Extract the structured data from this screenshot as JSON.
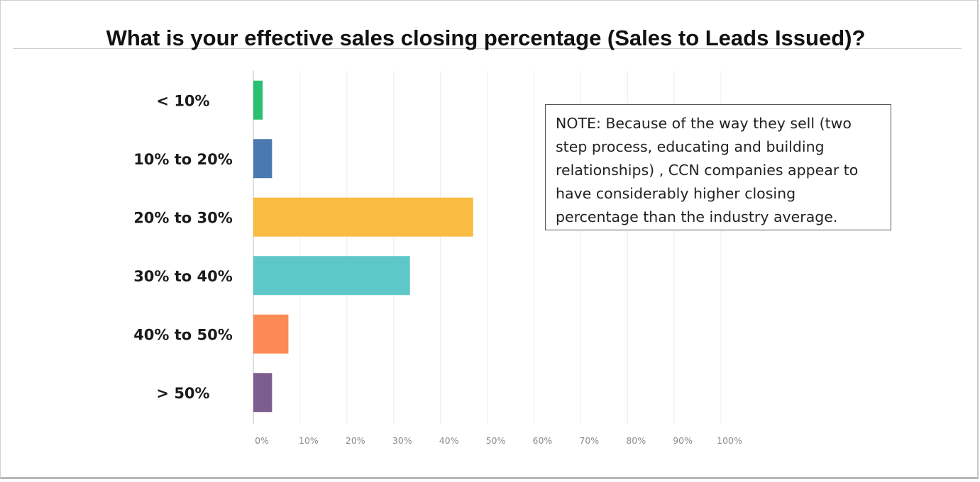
{
  "chart_data": {
    "type": "bar",
    "orientation": "horizontal",
    "title": "What is your effective sales closing percentage (Sales to Leads Issued)?",
    "categories": [
      "< 10%",
      "10% to 20%",
      "20% to 30%",
      "30% to 40%",
      "40% to 50%",
      "> 50%"
    ],
    "values": [
      2,
      4,
      47,
      33.5,
      7.5,
      4
    ],
    "colors": [
      "#2bbf72",
      "#4a78b0",
      "#f9bb42",
      "#5ec8c9",
      "#fc8a55",
      "#7c5d8e"
    ],
    "xlim": [
      0,
      100
    ],
    "x_ticks": [
      "0%",
      "10%",
      "20%",
      "30%",
      "40%",
      "50%",
      "60%",
      "70%",
      "80%",
      "90%",
      "100%"
    ],
    "grid": true,
    "legend": "none"
  },
  "note": {
    "text": "NOTE:  Because of the way they sell (two step process, educating and building relationships) , CCN companies appear to have  considerably higher closing percentage than the industry average."
  }
}
